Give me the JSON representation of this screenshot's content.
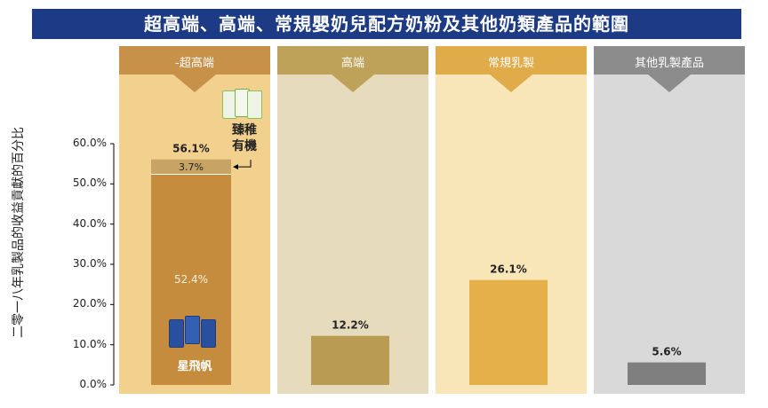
{
  "title": "超高端、高端、常規嬰奶兒配方奶粉及其他奶類產品的範圍",
  "chart_data": {
    "type": "bar",
    "ylabel": "二零一八年乳製品的收益貢獻的百分比",
    "ylim": [
      0,
      60
    ],
    "yticks": [
      "0.0%",
      "10.0%",
      "20.0%",
      "30.0%",
      "40.0%",
      "50.0%",
      "60.0%"
    ],
    "categories": [
      "-超高端",
      "高端",
      "常規乳製",
      "其他乳製產品"
    ],
    "values": [
      56.1,
      12.2,
      26.1,
      5.6
    ],
    "value_labels": [
      "56.1%",
      "12.2%",
      "26.1%",
      "5.6%"
    ],
    "stack": {
      "category": "-超高端",
      "segments": [
        {
          "label": "52.4%",
          "value": 52.4,
          "color": "#c48c3c"
        },
        {
          "label": "3.7%",
          "value": 3.7,
          "color": "#c8a464"
        }
      ]
    },
    "bar_colors": [
      "#c48c3c",
      "#b99b53",
      "#e5b04a",
      "#7f7f7f"
    ],
    "panel_colors": [
      "#f2d08e",
      "#e7dbbd",
      "#f8e6b9",
      "#d9d9d9"
    ],
    "header_colors": [
      "#c8914a",
      "#bfa259",
      "#e0ac4a",
      "#8c8c8c"
    ]
  },
  "products": {
    "organic_label_line1": "臻稚",
    "organic_label_line2": "有機",
    "flagship_label": "星飛帆"
  }
}
